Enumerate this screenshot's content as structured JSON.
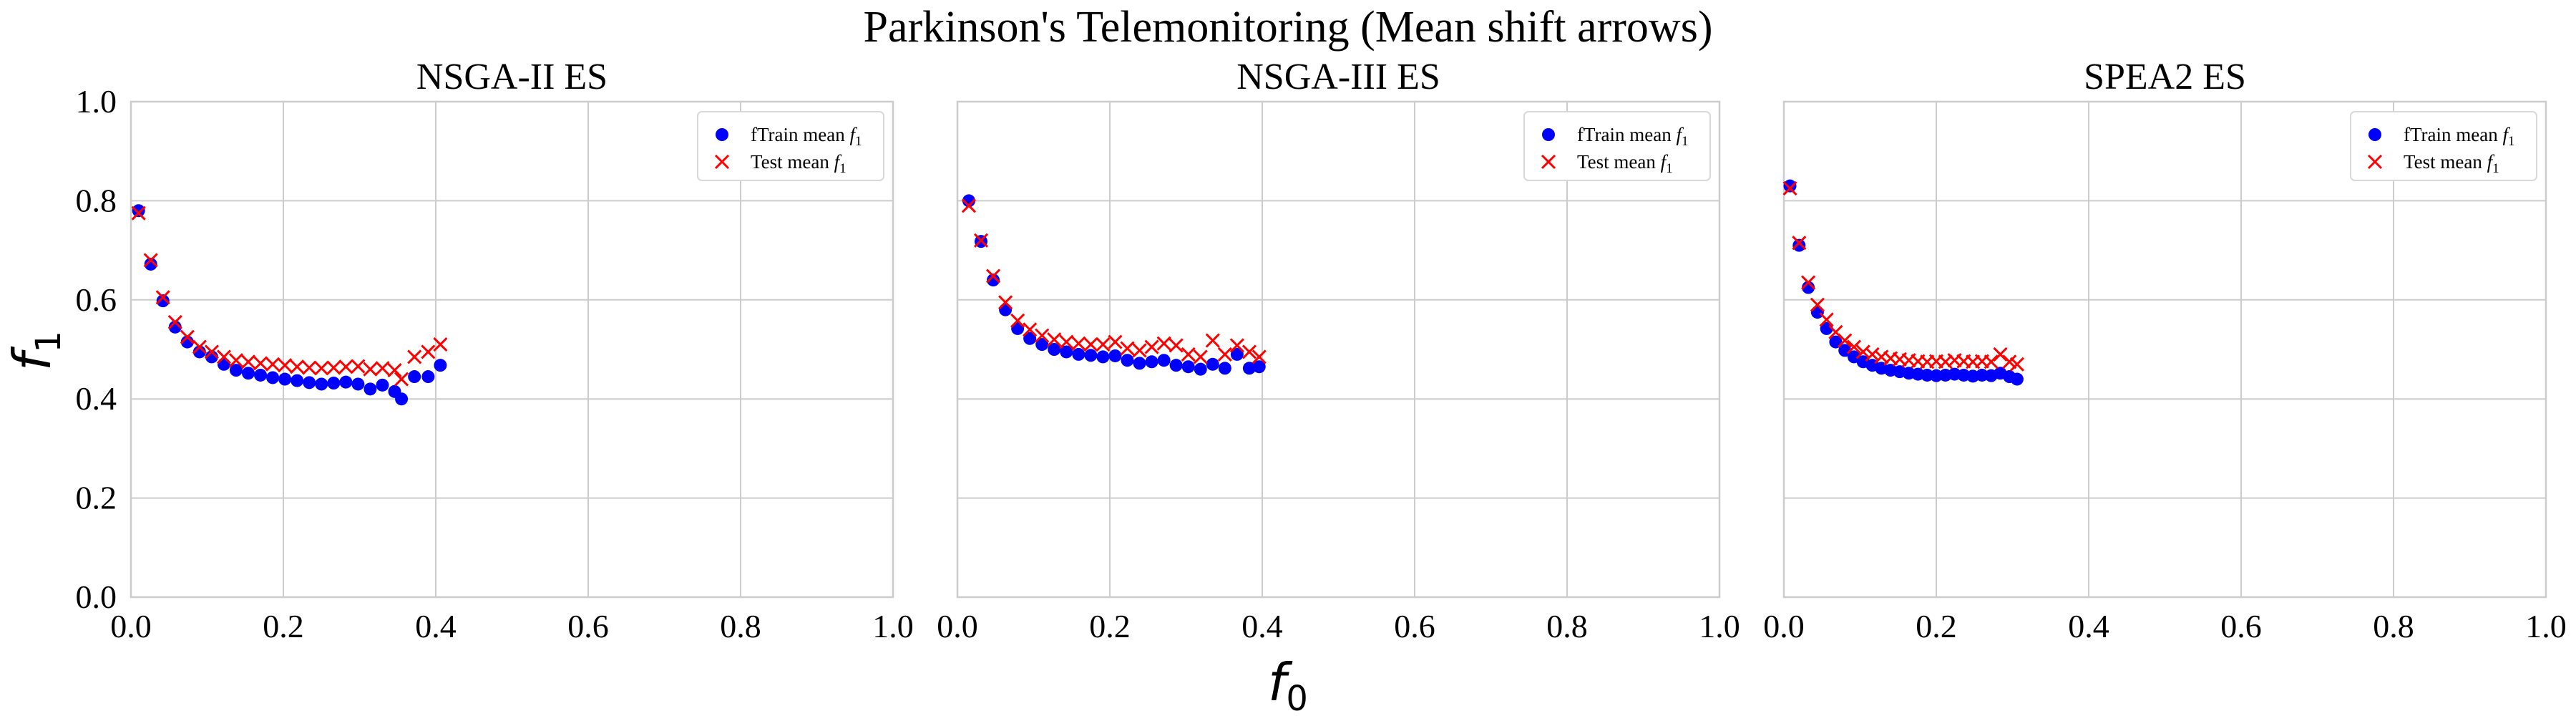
{
  "chart_data": {
    "type": "scatter",
    "title": "Parkinson's Telemonitoring (Mean shift arrows)",
    "xlabel": "f0",
    "ylabel": "f1",
    "xlim": [
      0,
      1
    ],
    "ylim": [
      0,
      1
    ],
    "x_ticks": [
      "0.0",
      "0.2",
      "0.4",
      "0.6",
      "0.8",
      "1.0"
    ],
    "y_ticks": [
      "0.0",
      "0.2",
      "0.4",
      "0.6",
      "0.8",
      "1.0"
    ],
    "grid": true,
    "legend_position": "top-right",
    "colors": {
      "train": "#0000ff",
      "test": "#ff0000",
      "grid": "#cccccc",
      "spine": "#cccccc"
    },
    "legend": [
      {
        "prefix": "fTrain mean ",
        "sym": "f",
        "sub": "1",
        "marker": "circle"
      },
      {
        "prefix": "Test mean ",
        "sym": "f",
        "sub": "1",
        "marker": "x"
      }
    ],
    "panels": [
      {
        "title": "NSGA-II ES",
        "series": [
          {
            "name": "fTrain mean f1",
            "marker": "circle",
            "x": [
              0.01,
              0.026,
              0.042,
              0.058,
              0.074,
              0.09,
              0.106,
              0.122,
              0.138,
              0.154,
              0.17,
              0.186,
              0.202,
              0.218,
              0.234,
              0.25,
              0.266,
              0.282,
              0.298,
              0.314,
              0.33,
              0.346,
              0.355,
              0.372,
              0.39,
              0.406
            ],
            "y": [
              0.78,
              0.672,
              0.598,
              0.545,
              0.515,
              0.495,
              0.485,
              0.47,
              0.458,
              0.452,
              0.448,
              0.443,
              0.44,
              0.437,
              0.433,
              0.43,
              0.432,
              0.434,
              0.43,
              0.42,
              0.428,
              0.415,
              0.4,
              0.445,
              0.445,
              0.468
            ]
          },
          {
            "name": "Test mean f1",
            "marker": "x",
            "x": [
              0.01,
              0.026,
              0.042,
              0.058,
              0.074,
              0.09,
              0.106,
              0.122,
              0.138,
              0.154,
              0.17,
              0.186,
              0.202,
              0.218,
              0.234,
              0.25,
              0.266,
              0.282,
              0.298,
              0.314,
              0.33,
              0.346,
              0.355,
              0.372,
              0.39,
              0.406
            ],
            "y": [
              0.775,
              0.68,
              0.605,
              0.555,
              0.525,
              0.505,
              0.495,
              0.485,
              0.478,
              0.475,
              0.472,
              0.47,
              0.468,
              0.465,
              0.463,
              0.462,
              0.463,
              0.465,
              0.466,
              0.46,
              0.462,
              0.458,
              0.44,
              0.485,
              0.495,
              0.51
            ]
          }
        ]
      },
      {
        "title": "NSGA-III ES",
        "series": [
          {
            "name": "fTrain mean f1",
            "marker": "circle",
            "x": [
              0.015,
              0.031,
              0.047,
              0.063,
              0.079,
              0.095,
              0.111,
              0.127,
              0.143,
              0.159,
              0.175,
              0.191,
              0.207,
              0.223,
              0.239,
              0.255,
              0.271,
              0.287,
              0.303,
              0.319,
              0.335,
              0.351,
              0.367,
              0.383,
              0.396
            ],
            "y": [
              0.8,
              0.718,
              0.64,
              0.58,
              0.542,
              0.522,
              0.51,
              0.5,
              0.495,
              0.49,
              0.488,
              0.485,
              0.487,
              0.478,
              0.472,
              0.475,
              0.478,
              0.468,
              0.465,
              0.46,
              0.47,
              0.462,
              0.49,
              0.462,
              0.465
            ]
          },
          {
            "name": "Test mean f1",
            "marker": "x",
            "x": [
              0.015,
              0.031,
              0.047,
              0.063,
              0.079,
              0.095,
              0.111,
              0.127,
              0.143,
              0.159,
              0.175,
              0.191,
              0.207,
              0.223,
              0.239,
              0.255,
              0.271,
              0.287,
              0.303,
              0.319,
              0.335,
              0.351,
              0.367,
              0.383,
              0.396
            ],
            "y": [
              0.79,
              0.72,
              0.648,
              0.595,
              0.558,
              0.54,
              0.528,
              0.52,
              0.515,
              0.512,
              0.51,
              0.51,
              0.515,
              0.502,
              0.498,
              0.505,
              0.512,
              0.508,
              0.49,
              0.485,
              0.518,
              0.49,
              0.508,
              0.495,
              0.485
            ]
          }
        ]
      },
      {
        "title": "SPEA2 ES",
        "series": [
          {
            "name": "fTrain mean f1",
            "marker": "circle",
            "x": [
              0.008,
              0.02,
              0.032,
              0.044,
              0.056,
              0.068,
              0.08,
              0.092,
              0.104,
              0.116,
              0.128,
              0.14,
              0.152,
              0.164,
              0.176,
              0.188,
              0.2,
              0.212,
              0.224,
              0.236,
              0.248,
              0.26,
              0.272,
              0.284,
              0.296,
              0.306
            ],
            "y": [
              0.83,
              0.71,
              0.625,
              0.575,
              0.542,
              0.515,
              0.498,
              0.485,
              0.475,
              0.468,
              0.462,
              0.458,
              0.455,
              0.452,
              0.45,
              0.448,
              0.447,
              0.448,
              0.45,
              0.448,
              0.446,
              0.448,
              0.447,
              0.452,
              0.445,
              0.44
            ]
          },
          {
            "name": "Test mean f1",
            "marker": "x",
            "x": [
              0.008,
              0.02,
              0.032,
              0.044,
              0.056,
              0.068,
              0.08,
              0.092,
              0.104,
              0.116,
              0.128,
              0.14,
              0.152,
              0.164,
              0.176,
              0.188,
              0.2,
              0.212,
              0.224,
              0.236,
              0.248,
              0.26,
              0.272,
              0.284,
              0.296,
              0.306
            ],
            "y": [
              0.825,
              0.715,
              0.635,
              0.59,
              0.56,
              0.535,
              0.518,
              0.505,
              0.495,
              0.49,
              0.485,
              0.482,
              0.48,
              0.478,
              0.476,
              0.475,
              0.476,
              0.475,
              0.478,
              0.476,
              0.475,
              0.476,
              0.475,
              0.49,
              0.475,
              0.47
            ]
          }
        ]
      }
    ]
  }
}
